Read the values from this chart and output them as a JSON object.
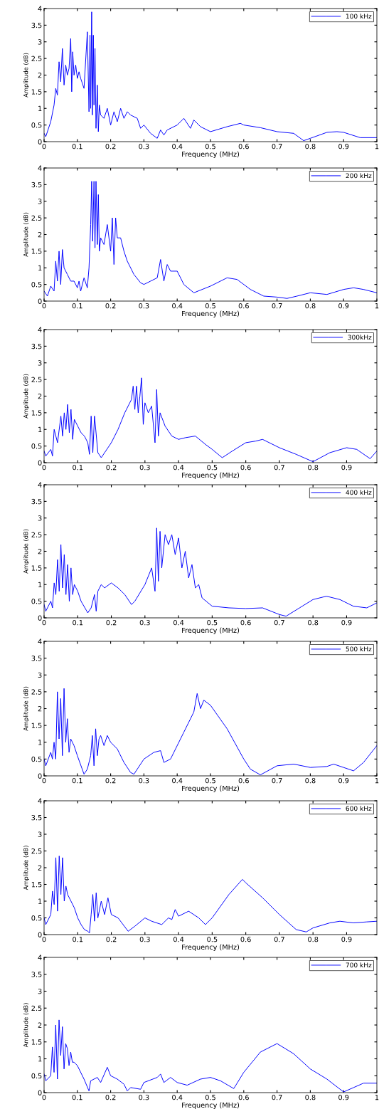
{
  "chart_data": [
    {
      "type": "line",
      "xlabel": "Frequency (MHz)",
      "ylabel": "Amplitude (dB)",
      "xlim": [
        0,
        1
      ],
      "ylim": [
        0,
        4
      ],
      "xticks": [
        0,
        0.1,
        0.2,
        0.3,
        0.4,
        0.5,
        0.6,
        0.7,
        0.8,
        0.9,
        1
      ],
      "yticks": [
        0,
        0.5,
        1,
        1.5,
        2,
        2.5,
        3,
        3.5,
        4
      ],
      "legend": "top right",
      "grid": false,
      "series": [
        {
          "name": "100 kHz",
          "color": "#0000ff",
          "x": [
            0,
            0.005,
            0.01,
            0.02,
            0.03,
            0.035,
            0.04,
            0.045,
            0.05,
            0.055,
            0.06,
            0.065,
            0.07,
            0.075,
            0.08,
            0.083,
            0.086,
            0.09,
            0.095,
            0.1,
            0.105,
            0.11,
            0.12,
            0.13,
            0.135,
            0.138,
            0.14,
            0.143,
            0.145,
            0.148,
            0.15,
            0.153,
            0.156,
            0.16,
            0.163,
            0.166,
            0.17,
            0.18,
            0.19,
            0.2,
            0.21,
            0.22,
            0.23,
            0.24,
            0.25,
            0.26,
            0.28,
            0.29,
            0.3,
            0.32,
            0.34,
            0.35,
            0.36,
            0.37,
            0.4,
            0.42,
            0.44,
            0.45,
            0.47,
            0.5,
            0.55,
            0.59,
            0.6,
            0.65,
            0.7,
            0.75,
            0.78,
            0.8,
            0.85,
            0.88,
            0.9,
            0.95,
            1.0
          ],
          "values": [
            0.25,
            0.15,
            0.3,
            0.6,
            1.1,
            1.6,
            1.4,
            2.4,
            1.8,
            2.8,
            1.7,
            2.3,
            2.0,
            2.2,
            3.1,
            1.5,
            2.7,
            2.0,
            2.3,
            1.9,
            2.1,
            1.9,
            1.6,
            3.3,
            0.9,
            3.2,
            1.0,
            3.9,
            0.8,
            3.2,
            1.1,
            2.8,
            0.4,
            1.7,
            0.3,
            1.1,
            0.8,
            0.7,
            1.0,
            0.5,
            0.9,
            0.6,
            1.0,
            0.7,
            0.9,
            0.8,
            0.7,
            0.4,
            0.5,
            0.25,
            0.1,
            0.35,
            0.2,
            0.35,
            0.5,
            0.7,
            0.4,
            0.65,
            0.45,
            0.3,
            0.45,
            0.55,
            0.5,
            0.42,
            0.3,
            0.25,
            0.03,
            0.1,
            0.28,
            0.3,
            0.28,
            0.12,
            0.12
          ]
        }
      ]
    },
    {
      "type": "line",
      "xlabel": "Frequency (MHz)",
      "ylabel": "Amplitude (dB)",
      "xlim": [
        0,
        1
      ],
      "ylim": [
        0,
        4
      ],
      "xticks": [
        0,
        0.1,
        0.2,
        0.3,
        0.4,
        0.5,
        0.6,
        0.7,
        0.8,
        0.9,
        1
      ],
      "yticks": [
        0,
        0.5,
        1,
        1.5,
        2,
        2.5,
        3,
        3.5,
        4
      ],
      "legend": "top right",
      "grid": false,
      "series": [
        {
          "name": "200 kHz",
          "color": "#0000ff",
          "x": [
            0,
            0.01,
            0.02,
            0.03,
            0.035,
            0.04,
            0.045,
            0.05,
            0.055,
            0.06,
            0.07,
            0.08,
            0.09,
            0.1,
            0.105,
            0.11,
            0.12,
            0.13,
            0.135,
            0.14,
            0.143,
            0.146,
            0.15,
            0.153,
            0.156,
            0.16,
            0.163,
            0.166,
            0.17,
            0.18,
            0.19,
            0.2,
            0.205,
            0.21,
            0.215,
            0.22,
            0.23,
            0.24,
            0.25,
            0.27,
            0.29,
            0.3,
            0.32,
            0.34,
            0.35,
            0.36,
            0.37,
            0.38,
            0.4,
            0.42,
            0.45,
            0.5,
            0.55,
            0.58,
            0.62,
            0.66,
            0.7,
            0.73,
            0.76,
            0.8,
            0.85,
            0.9,
            0.93,
            0.96,
            1.0
          ],
          "values": [
            0.3,
            0.15,
            0.45,
            0.3,
            1.2,
            0.6,
            1.5,
            0.5,
            1.55,
            1.0,
            0.8,
            0.6,
            0.6,
            0.4,
            0.6,
            0.3,
            0.7,
            0.4,
            1.0,
            2.3,
            3.6,
            1.8,
            3.6,
            1.6,
            3.6,
            1.7,
            3.2,
            1.5,
            1.9,
            1.7,
            2.3,
            1.5,
            2.5,
            1.1,
            2.5,
            1.9,
            1.9,
            1.5,
            1.2,
            0.8,
            0.55,
            0.5,
            0.6,
            0.7,
            1.25,
            0.6,
            1.1,
            0.9,
            0.9,
            0.5,
            0.25,
            0.45,
            0.7,
            0.65,
            0.35,
            0.15,
            0.12,
            0.08,
            0.15,
            0.25,
            0.2,
            0.35,
            0.4,
            0.35,
            0.25
          ]
        }
      ]
    },
    {
      "type": "line",
      "xlabel": "Frequency (MHz)",
      "ylabel": "Amplitude (dB)",
      "xlim": [
        0,
        0.99
      ],
      "ylim": [
        0,
        4
      ],
      "xticks": [
        0,
        0.1,
        0.2,
        0.3,
        0.4,
        0.5,
        0.6,
        0.7,
        0.8,
        0.9
      ],
      "yticks": [
        0,
        0.5,
        1,
        1.5,
        2,
        2.5,
        3,
        3.5,
        4
      ],
      "legend": "top right",
      "grid": false,
      "series": [
        {
          "name": "300kHz",
          "color": "#0000ff",
          "x": [
            0,
            0.005,
            0.02,
            0.025,
            0.03,
            0.04,
            0.05,
            0.055,
            0.06,
            0.065,
            0.07,
            0.075,
            0.08,
            0.085,
            0.09,
            0.1,
            0.11,
            0.12,
            0.13,
            0.135,
            0.14,
            0.145,
            0.15,
            0.16,
            0.17,
            0.2,
            0.22,
            0.24,
            0.26,
            0.265,
            0.27,
            0.275,
            0.28,
            0.285,
            0.29,
            0.295,
            0.3,
            0.31,
            0.32,
            0.33,
            0.335,
            0.34,
            0.345,
            0.36,
            0.38,
            0.4,
            0.42,
            0.45,
            0.48,
            0.5,
            0.53,
            0.56,
            0.6,
            0.63,
            0.65,
            0.7,
            0.75,
            0.8,
            0.85,
            0.9,
            0.93,
            0.97,
            0.99
          ],
          "values": [
            0.35,
            0.2,
            0.4,
            0.2,
            1.0,
            0.6,
            1.4,
            0.8,
            1.5,
            1.0,
            1.75,
            0.9,
            1.6,
            0.7,
            1.3,
            1.1,
            0.9,
            0.8,
            0.6,
            0.25,
            1.4,
            0.3,
            1.4,
            0.3,
            0.15,
            0.6,
            1.0,
            1.5,
            1.9,
            2.3,
            1.6,
            2.3,
            1.5,
            2.0,
            2.55,
            1.15,
            1.8,
            1.5,
            1.7,
            0.6,
            2.2,
            0.8,
            1.5,
            1.1,
            0.8,
            0.7,
            0.75,
            0.8,
            0.55,
            0.4,
            0.15,
            0.35,
            0.6,
            0.65,
            0.7,
            0.45,
            0.25,
            0.03,
            0.3,
            0.45,
            0.4,
            0.12,
            0.35
          ]
        }
      ]
    },
    {
      "type": "line",
      "xlabel": "Frequency (MHz)",
      "ylabel": "Amplitude (dB)",
      "xlim": [
        0,
        0.99
      ],
      "ylim": [
        0,
        4
      ],
      "xticks": [
        0,
        0.1,
        0.2,
        0.3,
        0.4,
        0.5,
        0.6,
        0.7,
        0.8,
        0.9
      ],
      "yticks": [
        0,
        0.5,
        1,
        1.5,
        2,
        2.5,
        3,
        3.5,
        4
      ],
      "legend": "top right",
      "grid": false,
      "series": [
        {
          "name": "400 kHz",
          "color": "#0000ff",
          "x": [
            0,
            0.005,
            0.02,
            0.025,
            0.03,
            0.035,
            0.04,
            0.045,
            0.05,
            0.055,
            0.06,
            0.065,
            0.07,
            0.075,
            0.08,
            0.085,
            0.09,
            0.1,
            0.11,
            0.13,
            0.14,
            0.15,
            0.155,
            0.16,
            0.17,
            0.18,
            0.2,
            0.22,
            0.24,
            0.26,
            0.27,
            0.3,
            0.32,
            0.33,
            0.335,
            0.34,
            0.345,
            0.35,
            0.36,
            0.37,
            0.38,
            0.39,
            0.4,
            0.41,
            0.42,
            0.43,
            0.44,
            0.45,
            0.46,
            0.47,
            0.5,
            0.55,
            0.6,
            0.65,
            0.7,
            0.72,
            0.76,
            0.8,
            0.84,
            0.88,
            0.92,
            0.96,
            0.99
          ],
          "values": [
            0.4,
            0.2,
            0.5,
            0.3,
            1.05,
            0.7,
            1.75,
            0.8,
            2.2,
            0.9,
            1.9,
            0.7,
            1.6,
            0.5,
            1.5,
            0.7,
            1.0,
            0.8,
            0.5,
            0.15,
            0.3,
            0.7,
            0.2,
            0.8,
            1.0,
            0.9,
            1.05,
            0.9,
            0.7,
            0.4,
            0.5,
            1.0,
            1.5,
            0.8,
            2.7,
            1.1,
            2.6,
            1.5,
            2.5,
            2.2,
            2.5,
            1.9,
            2.4,
            1.5,
            2.0,
            1.2,
            1.6,
            0.9,
            1.0,
            0.6,
            0.35,
            0.3,
            0.28,
            0.3,
            0.1,
            0.05,
            0.3,
            0.55,
            0.65,
            0.55,
            0.35,
            0.3,
            0.45
          ]
        }
      ]
    },
    {
      "type": "line",
      "xlabel": "Frequency (MHz)",
      "ylabel": "Amplitude (dB)",
      "xlim": [
        0,
        1
      ],
      "ylim": [
        0,
        4
      ],
      "xticks": [
        0,
        0.1,
        0.2,
        0.3,
        0.4,
        0.5,
        0.6,
        0.7,
        0.8,
        0.9,
        1
      ],
      "yticks": [
        0,
        0.5,
        1,
        1.5,
        2,
        2.5,
        3,
        3.5,
        4
      ],
      "legend": "top right",
      "grid": false,
      "series": [
        {
          "name": "500 kHz",
          "color": "#0000ff",
          "x": [
            0,
            0.005,
            0.02,
            0.025,
            0.03,
            0.035,
            0.04,
            0.045,
            0.05,
            0.055,
            0.06,
            0.065,
            0.07,
            0.075,
            0.08,
            0.09,
            0.1,
            0.12,
            0.13,
            0.14,
            0.145,
            0.15,
            0.155,
            0.16,
            0.165,
            0.17,
            0.18,
            0.19,
            0.2,
            0.22,
            0.24,
            0.26,
            0.27,
            0.3,
            0.33,
            0.35,
            0.36,
            0.38,
            0.42,
            0.45,
            0.46,
            0.47,
            0.48,
            0.5,
            0.55,
            0.6,
            0.62,
            0.65,
            0.7,
            0.75,
            0.8,
            0.85,
            0.87,
            0.9,
            0.93,
            0.96,
            1.0
          ],
          "values": [
            0.5,
            0.3,
            0.7,
            0.5,
            1.0,
            0.5,
            2.5,
            1.1,
            2.3,
            0.6,
            2.6,
            1.0,
            1.7,
            0.7,
            1.1,
            0.9,
            0.6,
            0.05,
            0.2,
            0.6,
            1.2,
            0.3,
            1.4,
            0.6,
            1.1,
            1.2,
            0.9,
            1.2,
            1.0,
            0.8,
            0.4,
            0.1,
            0.05,
            0.5,
            0.7,
            0.75,
            0.4,
            0.5,
            1.3,
            1.9,
            2.45,
            2.0,
            2.25,
            2.1,
            1.4,
            0.5,
            0.2,
            0.03,
            0.3,
            0.35,
            0.25,
            0.28,
            0.35,
            0.25,
            0.15,
            0.4,
            0.9
          ]
        }
      ]
    },
    {
      "type": "line",
      "xlabel": "Frequency (MHz)",
      "ylabel": "Amplitude (dB)",
      "xlim": [
        0,
        0.99
      ],
      "ylim": [
        0,
        4
      ],
      "xticks": [
        0,
        0.1,
        0.2,
        0.3,
        0.4,
        0.5,
        0.6,
        0.7,
        0.8,
        0.9
      ],
      "yticks": [
        0,
        0.5,
        1,
        1.5,
        2,
        2.5,
        3,
        3.5,
        4
      ],
      "legend": "top right",
      "grid": false,
      "series": [
        {
          "name": "600 kHz",
          "color": "#0000ff",
          "x": [
            0,
            0.005,
            0.02,
            0.025,
            0.03,
            0.035,
            0.04,
            0.045,
            0.05,
            0.055,
            0.06,
            0.065,
            0.07,
            0.08,
            0.09,
            0.1,
            0.11,
            0.12,
            0.13,
            0.135,
            0.14,
            0.145,
            0.15,
            0.155,
            0.16,
            0.17,
            0.18,
            0.19,
            0.2,
            0.22,
            0.25,
            0.27,
            0.3,
            0.32,
            0.35,
            0.37,
            0.38,
            0.39,
            0.4,
            0.43,
            0.46,
            0.48,
            0.5,
            0.55,
            0.59,
            0.6,
            0.65,
            0.7,
            0.75,
            0.78,
            0.8,
            0.85,
            0.88,
            0.92,
            0.96,
            0.99
          ],
          "values": [
            0.5,
            0.3,
            0.6,
            1.3,
            0.9,
            2.3,
            0.7,
            2.35,
            1.2,
            2.3,
            1.0,
            1.45,
            1.2,
            1.0,
            0.8,
            0.5,
            0.3,
            0.15,
            0.1,
            0.05,
            0.6,
            1.2,
            0.4,
            1.25,
            0.5,
            1.0,
            0.6,
            1.1,
            0.6,
            0.5,
            0.1,
            0.25,
            0.5,
            0.4,
            0.3,
            0.5,
            0.45,
            0.75,
            0.55,
            0.7,
            0.5,
            0.3,
            0.5,
            1.2,
            1.65,
            1.55,
            1.1,
            0.6,
            0.15,
            0.08,
            0.2,
            0.35,
            0.4,
            0.35,
            0.38,
            0.4
          ]
        }
      ]
    },
    {
      "type": "line",
      "xlabel": "Frequency (MHz)",
      "ylabel": "Amplitude (dB)",
      "xlim": [
        0,
        1
      ],
      "ylim": [
        0,
        4
      ],
      "xticks": [
        0,
        0.1,
        0.2,
        0.3,
        0.4,
        0.5,
        0.6,
        0.7,
        0.8,
        0.9,
        1
      ],
      "yticks": [
        0,
        0.5,
        1,
        1.5,
        2,
        2.5,
        3,
        3.5,
        4
      ],
      "legend": "top right",
      "grid": false,
      "series": [
        {
          "name": "700 kHz",
          "color": "#0000ff",
          "x": [
            0,
            0.005,
            0.02,
            0.025,
            0.03,
            0.035,
            0.04,
            0.045,
            0.05,
            0.055,
            0.06,
            0.065,
            0.07,
            0.075,
            0.08,
            0.085,
            0.09,
            0.1,
            0.12,
            0.135,
            0.14,
            0.16,
            0.17,
            0.19,
            0.2,
            0.22,
            0.24,
            0.25,
            0.26,
            0.29,
            0.3,
            0.34,
            0.35,
            0.36,
            0.38,
            0.4,
            0.43,
            0.47,
            0.5,
            0.53,
            0.57,
            0.6,
            0.65,
            0.7,
            0.75,
            0.8,
            0.85,
            0.9,
            0.93,
            0.96,
            1.0
          ],
          "values": [
            0.55,
            0.35,
            0.5,
            1.35,
            0.6,
            2.0,
            0.4,
            2.15,
            1.1,
            1.95,
            0.7,
            1.45,
            1.3,
            0.8,
            1.2,
            0.9,
            0.9,
            0.8,
            0.4,
            0.05,
            0.35,
            0.45,
            0.3,
            0.75,
            0.5,
            0.4,
            0.25,
            0.05,
            0.15,
            0.1,
            0.3,
            0.45,
            0.55,
            0.3,
            0.45,
            0.3,
            0.22,
            0.4,
            0.45,
            0.35,
            0.12,
            0.6,
            1.2,
            1.45,
            1.15,
            0.7,
            0.4,
            0.02,
            0.15,
            0.28,
            0.28
          ]
        }
      ]
    }
  ]
}
